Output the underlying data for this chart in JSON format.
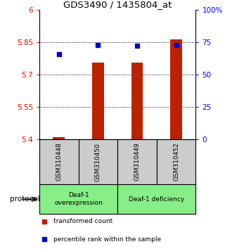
{
  "title": "GDS3490 / 1435804_at",
  "samples": [
    "GSM310448",
    "GSM310450",
    "GSM310449",
    "GSM310452"
  ],
  "bar_bottoms": [
    5.4,
    5.4,
    5.4,
    5.4
  ],
  "bar_tops": [
    5.41,
    5.755,
    5.755,
    5.862
  ],
  "percentile_values": [
    5.795,
    5.838,
    5.834,
    5.838
  ],
  "ylim_left": [
    5.4,
    6.0
  ],
  "ylim_right": [
    0,
    100
  ],
  "yticks_left": [
    5.4,
    5.55,
    5.7,
    5.85,
    6.0
  ],
  "ytick_labels_left": [
    "5.4",
    "5.55",
    "5.7",
    "5.85",
    "6"
  ],
  "yticks_right": [
    0,
    25,
    50,
    75,
    100
  ],
  "ytick_labels_right": [
    "0",
    "25",
    "50",
    "75",
    "100%"
  ],
  "hlines": [
    5.55,
    5.7,
    5.85
  ],
  "bar_color": "#bb2200",
  "dot_color": "#0000cc",
  "protocol_groups": [
    {
      "label": "Deaf-1\noverexpression",
      "start": 0,
      "end": 2,
      "color": "#88ee88"
    },
    {
      "label": "Deaf-1 deficiency",
      "start": 2,
      "end": 4,
      "color": "#88ee88"
    }
  ],
  "protocol_label": "protocol",
  "legend_items": [
    {
      "color": "#bb2200",
      "label": "transformed count"
    },
    {
      "color": "#0000cc",
      "label": "percentile rank within the sample"
    }
  ],
  "sample_box_color": "#cccccc",
  "background_color": "#ffffff",
  "bar_width": 0.3
}
